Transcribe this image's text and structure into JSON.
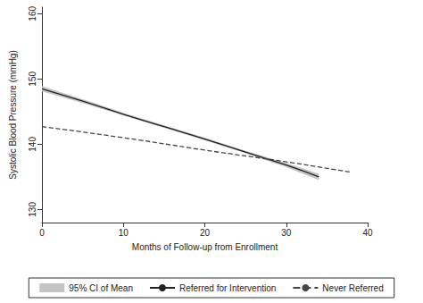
{
  "chart_data": {
    "type": "line",
    "x_label": "Months of Follow-up from Enrollment",
    "y_label": "Systolic Blood Pressure (mmHg)",
    "xlim": [
      0,
      40
    ],
    "xticks": [
      0,
      10,
      20,
      30,
      40
    ],
    "ylim": [
      128,
      161
    ],
    "yticks": [
      130,
      140,
      150,
      160
    ],
    "grid": false,
    "legend": "bottom",
    "series": [
      {
        "name": "Referred for Intervention",
        "color": "#222222",
        "line_style": "solid",
        "x": [
          0,
          5,
          10,
          15,
          20,
          25,
          30,
          34
        ],
        "values": [
          148.5,
          146.6,
          144.6,
          142.7,
          140.8,
          138.8,
          136.8,
          135.0
        ],
        "ci_name": "95% CI of Mean",
        "ci_color": "#c4c4c4",
        "ci_lower": [
          148.1,
          146.3,
          144.4,
          142.5,
          140.6,
          138.6,
          136.5,
          134.5
        ],
        "ci_upper": [
          148.9,
          146.9,
          144.8,
          142.9,
          141.0,
          139.0,
          137.1,
          135.5
        ]
      },
      {
        "name": "Never Referred",
        "color": "#444444",
        "line_style": "dashed",
        "x": [
          0,
          10,
          20,
          30,
          38
        ],
        "values": [
          142.7,
          141.0,
          139.1,
          137.3,
          135.7
        ]
      }
    ]
  }
}
